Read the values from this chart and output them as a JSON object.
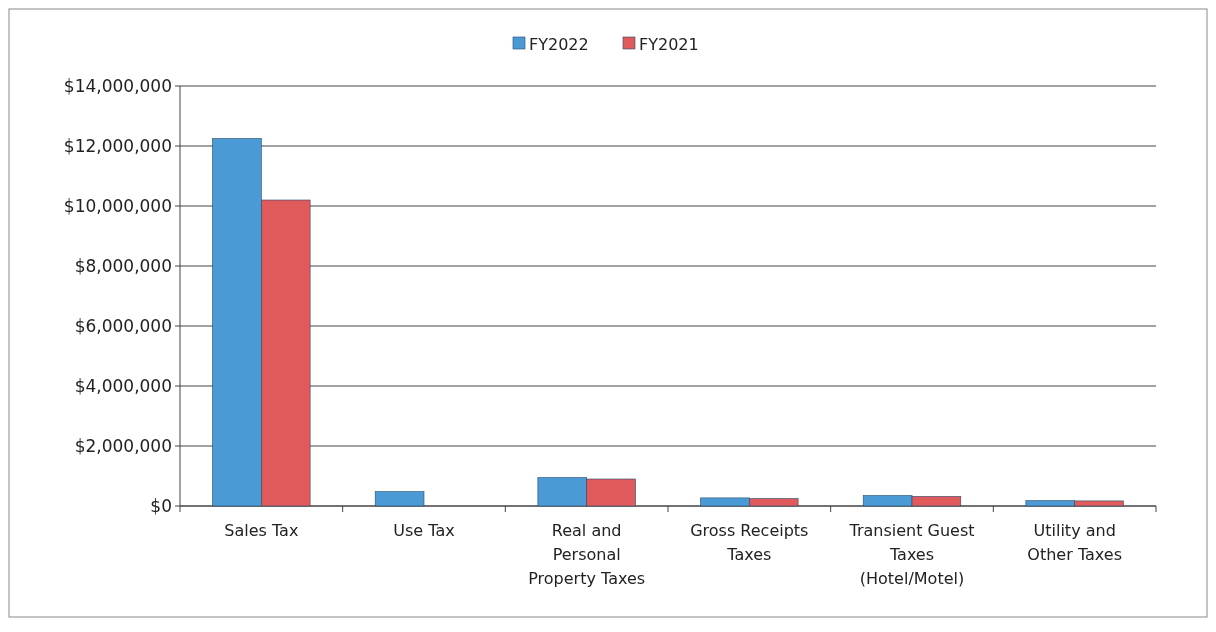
{
  "chart_data": {
    "type": "bar",
    "categories": [
      "Sales Tax",
      "Use Tax",
      "Real and Personal Property Taxes",
      "Gross Receipts Taxes",
      "Transient Guest Taxes (Hotel/Motel)",
      "Utility and Other Taxes"
    ],
    "series": [
      {
        "name": "FY2022",
        "color": "#4a9ad6",
        "values": [
          12250000,
          480000,
          950000,
          270000,
          350000,
          180000
        ]
      },
      {
        "name": "FY2021",
        "color": "#e05a5c",
        "values": [
          10200000,
          0,
          900000,
          250000,
          320000,
          170000
        ]
      }
    ],
    "ylim": [
      0,
      14000000
    ],
    "yticks": [
      {
        "value": 0,
        "label": "$0"
      },
      {
        "value": 2000000,
        "label": "$2,000,000"
      },
      {
        "value": 4000000,
        "label": "$4,000,000"
      },
      {
        "value": 6000000,
        "label": "$6,000,000"
      },
      {
        "value": 8000000,
        "label": "$8,000,000"
      },
      {
        "value": 10000000,
        "label": "$10,000,000"
      },
      {
        "value": 12000000,
        "label": "$12,000,000"
      },
      {
        "value": 14000000,
        "label": "$14,000,000"
      }
    ],
    "grid": "y",
    "legend": "top"
  }
}
